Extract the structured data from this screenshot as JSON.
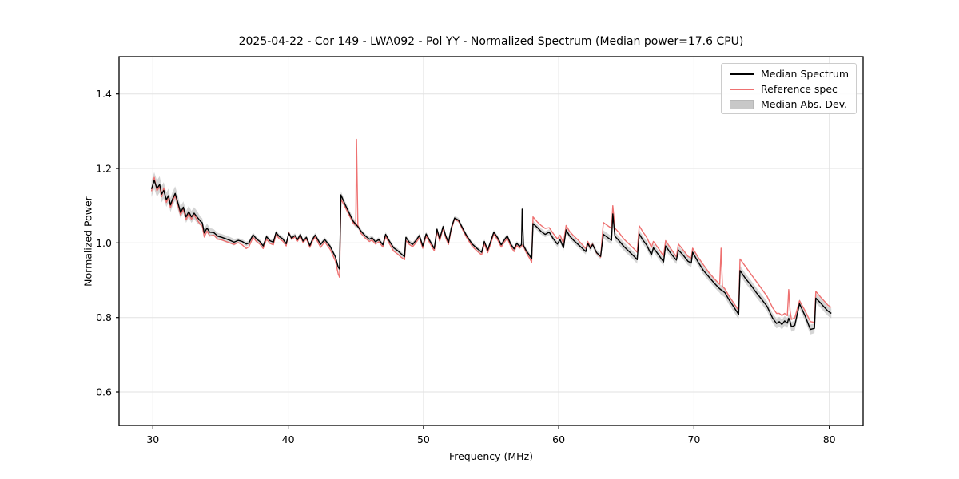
{
  "chart_data": {
    "type": "line",
    "title": "2025-04-22 - Cor 149 - LWA092 - Pol YY - Normalized Spectrum (Median power=17.6 CPU)",
    "xlabel": "Frequency (MHz)",
    "ylabel": "Normalized Power",
    "xlim": [
      27.5,
      82.5
    ],
    "ylim": [
      0.51,
      1.5
    ],
    "xticks": [
      30,
      40,
      50,
      60,
      70,
      80
    ],
    "yticks": [
      0.6,
      0.8,
      1.0,
      1.2,
      1.4
    ],
    "grid": true,
    "legend_position": "upper right",
    "colors": {
      "median": "#000000",
      "reference": "#ee7171",
      "band": "#ababab",
      "grid": "#e2e2e2",
      "spine": "#000000",
      "background": "#ffffff"
    },
    "legend": [
      {
        "label": "Median Spectrum",
        "color": "#000000",
        "type": "line"
      },
      {
        "label": "Reference spec",
        "color": "#ee7171",
        "type": "line"
      },
      {
        "label": "Median Abs. Dev.",
        "color": "#c8c8c8",
        "type": "patch"
      }
    ],
    "x": [
      29.9,
      30.1,
      30.3,
      30.5,
      30.65,
      30.8,
      31.0,
      31.15,
      31.3,
      31.45,
      31.65,
      31.85,
      32.05,
      32.25,
      32.45,
      32.65,
      32.85,
      33.05,
      33.3,
      33.5,
      33.65,
      33.8,
      34.0,
      34.2,
      34.5,
      34.8,
      35.1,
      35.4,
      35.7,
      36.0,
      36.3,
      36.6,
      36.9,
      37.1,
      37.4,
      37.65,
      37.9,
      38.15,
      38.4,
      38.65,
      38.9,
      39.1,
      39.35,
      39.6,
      39.85,
      40.05,
      40.25,
      40.5,
      40.7,
      40.9,
      41.1,
      41.35,
      41.6,
      41.8,
      42.0,
      42.4,
      42.7,
      43.1,
      43.5,
      43.7,
      43.8,
      43.9,
      44.2,
      44.5,
      44.8,
      45.0,
      45.05,
      45.15,
      45.4,
      45.7,
      46.0,
      46.2,
      46.45,
      46.7,
      47.0,
      47.2,
      47.5,
      47.8,
      48.1,
      48.35,
      48.6,
      48.7,
      48.95,
      49.2,
      49.45,
      49.7,
      49.95,
      50.2,
      50.5,
      50.8,
      51.0,
      51.2,
      51.45,
      51.65,
      51.85,
      52.05,
      52.3,
      52.6,
      52.9,
      53.2,
      53.6,
      54.0,
      54.3,
      54.5,
      54.75,
      55.0,
      55.2,
      55.5,
      55.75,
      56.0,
      56.2,
      56.45,
      56.7,
      56.9,
      57.1,
      57.25,
      57.3,
      57.4,
      57.6,
      57.8,
      58.0,
      58.1,
      58.4,
      58.7,
      59.0,
      59.3,
      59.6,
      59.9,
      60.1,
      60.35,
      60.55,
      60.8,
      61.1,
      61.4,
      61.7,
      62.0,
      62.15,
      62.35,
      62.5,
      62.8,
      63.1,
      63.3,
      63.6,
      63.9,
      64.0,
      64.15,
      64.45,
      64.8,
      65.2,
      65.6,
      65.8,
      65.95,
      66.2,
      66.5,
      66.85,
      67.0,
      67.4,
      67.75,
      67.9,
      68.3,
      68.7,
      68.85,
      69.2,
      69.55,
      69.8,
      69.9,
      70.3,
      70.7,
      71.1,
      71.5,
      71.9,
      72.0,
      72.1,
      72.3,
      72.6,
      73.0,
      73.3,
      73.4,
      73.8,
      74.2,
      74.6,
      75.0,
      75.4,
      75.8,
      76.1,
      76.3,
      76.5,
      76.7,
      76.9,
      77.0,
      77.1,
      77.2,
      77.45,
      77.8,
      78.2,
      78.6,
      78.9,
      79.0,
      79.35,
      79.65,
      79.9,
      80.15
    ],
    "series": [
      {
        "name": "Median Spectrum",
        "color": "#000000",
        "values": [
          1.145,
          1.168,
          1.146,
          1.157,
          1.131,
          1.141,
          1.116,
          1.127,
          1.102,
          1.118,
          1.133,
          1.108,
          1.082,
          1.096,
          1.07,
          1.084,
          1.07,
          1.08,
          1.068,
          1.059,
          1.054,
          1.027,
          1.04,
          1.029,
          1.028,
          1.018,
          1.015,
          1.011,
          1.007,
          1.002,
          1.007,
          1.004,
          0.997,
          1.0,
          1.022,
          1.011,
          1.004,
          0.992,
          1.017,
          1.006,
          1.002,
          1.028,
          1.017,
          1.011,
          0.998,
          1.026,
          1.013,
          1.02,
          1.009,
          1.023,
          1.005,
          1.015,
          0.993,
          1.01,
          1.021,
          0.996,
          1.009,
          0.991,
          0.962,
          0.935,
          0.93,
          1.129,
          1.104,
          1.081,
          1.059,
          1.05,
          1.048,
          1.044,
          1.031,
          1.019,
          1.01,
          1.014,
          1.003,
          1.009,
          0.995,
          1.023,
          1.004,
          0.987,
          0.979,
          0.971,
          0.963,
          1.015,
          1.002,
          0.996,
          1.007,
          1.02,
          0.992,
          1.024,
          1.004,
          0.985,
          1.037,
          1.011,
          1.044,
          1.019,
          1.001,
          1.04,
          1.067,
          1.061,
          1.039,
          1.019,
          0.997,
          0.984,
          0.975,
          1.004,
          0.981,
          1.007,
          1.029,
          1.013,
          0.995,
          1.009,
          1.019,
          0.997,
          0.984,
          0.999,
          0.991,
          0.995,
          1.091,
          0.993,
          0.979,
          0.969,
          0.957,
          1.052,
          1.042,
          1.031,
          1.023,
          1.029,
          1.011,
          0.997,
          1.009,
          0.987,
          1.035,
          1.019,
          1.007,
          0.997,
          0.987,
          0.977,
          0.999,
          0.985,
          0.996,
          0.974,
          0.964,
          1.023,
          1.015,
          1.007,
          1.078,
          1.018,
          1.006,
          0.991,
          0.977,
          0.963,
          0.955,
          1.024,
          1.009,
          0.994,
          0.968,
          0.987,
          0.967,
          0.949,
          0.992,
          0.971,
          0.954,
          0.981,
          0.967,
          0.951,
          0.946,
          0.975,
          0.949,
          0.926,
          0.909,
          0.892,
          0.877,
          0.874,
          0.872,
          0.866,
          0.847,
          0.825,
          0.808,
          0.926,
          0.905,
          0.887,
          0.867,
          0.849,
          0.83,
          0.799,
          0.784,
          0.789,
          0.781,
          0.791,
          0.785,
          0.798,
          0.789,
          0.775,
          0.779,
          0.837,
          0.805,
          0.768,
          0.771,
          0.852,
          0.839,
          0.827,
          0.817,
          0.811
        ]
      },
      {
        "name": "Reference spec",
        "color": "#ee7171",
        "values": [
          1.139,
          1.176,
          1.14,
          1.151,
          1.124,
          1.148,
          1.109,
          1.121,
          1.095,
          1.112,
          1.127,
          1.102,
          1.075,
          1.09,
          1.062,
          1.078,
          1.064,
          1.075,
          1.06,
          1.05,
          1.046,
          1.016,
          1.032,
          1.019,
          1.021,
          1.01,
          1.008,
          1.004,
          1.0,
          0.996,
          1.001,
          0.995,
          0.985,
          0.99,
          1.015,
          1.004,
          0.997,
          0.985,
          1.01,
          0.999,
          0.995,
          1.022,
          1.011,
          1.005,
          0.992,
          1.028,
          1.01,
          1.016,
          1.005,
          1.019,
          1.001,
          1.011,
          0.988,
          1.005,
          1.016,
          0.988,
          1.003,
          0.983,
          0.951,
          0.917,
          0.908,
          1.118,
          1.097,
          1.075,
          1.054,
          1.047,
          1.278,
          1.048,
          1.025,
          1.013,
          1.004,
          1.008,
          0.997,
          1.003,
          0.989,
          1.017,
          0.997,
          0.978,
          0.97,
          0.962,
          0.955,
          1.007,
          0.996,
          0.99,
          1.001,
          1.014,
          0.986,
          1.018,
          0.998,
          0.979,
          1.031,
          1.005,
          1.039,
          1.013,
          0.996,
          1.036,
          1.064,
          1.058,
          1.035,
          1.014,
          0.991,
          0.977,
          0.968,
          0.998,
          0.974,
          1.001,
          1.024,
          1.007,
          0.989,
          1.003,
          1.013,
          0.991,
          0.977,
          0.993,
          0.986,
          0.99,
          0.994,
          0.991,
          0.974,
          0.962,
          0.948,
          1.07,
          1.057,
          1.047,
          1.039,
          1.041,
          1.025,
          1.011,
          1.021,
          0.999,
          1.047,
          1.031,
          1.019,
          1.009,
          0.997,
          0.985,
          1.004,
          0.989,
          0.997,
          0.973,
          0.962,
          1.055,
          1.047,
          1.039,
          1.1,
          1.04,
          1.028,
          1.011,
          0.997,
          0.983,
          0.975,
          1.046,
          1.031,
          1.015,
          0.988,
          1.004,
          0.984,
          0.964,
          1.006,
          0.984,
          0.963,
          0.997,
          0.981,
          0.964,
          0.959,
          0.986,
          0.962,
          0.941,
          0.921,
          0.904,
          0.889,
          0.986,
          0.884,
          0.876,
          0.857,
          0.835,
          0.819,
          0.957,
          0.937,
          0.917,
          0.897,
          0.877,
          0.857,
          0.827,
          0.811,
          0.811,
          0.805,
          0.811,
          0.805,
          0.875,
          0.818,
          0.795,
          0.799,
          0.845,
          0.819,
          0.789,
          0.787,
          0.87,
          0.855,
          0.843,
          0.833,
          0.827
        ]
      }
    ],
    "mad_halfwidth": [
      0.022,
      0.022,
      0.022,
      0.022,
      0.022,
      0.022,
      0.019,
      0.019,
      0.019,
      0.019,
      0.019,
      0.019,
      0.016,
      0.016,
      0.016,
      0.016,
      0.016,
      0.016,
      0.016,
      0.012,
      0.012,
      0.012,
      0.012,
      0.012,
      0.009,
      0.009,
      0.009,
      0.009,
      0.009,
      0.009,
      0.006,
      0.006,
      0.006,
      0.006,
      0.006,
      0.006,
      0.006,
      0.006,
      0.006,
      0.006,
      0.006,
      0.006,
      0.006,
      0.006,
      0.006,
      0.006,
      0.006,
      0.006,
      0.006,
      0.006,
      0.006,
      0.006,
      0.006,
      0.006,
      0.006,
      0.006,
      0.006,
      0.006,
      0.006,
      0.006,
      0.006,
      0.009,
      0.009,
      0.009,
      0.009,
      0.009,
      0.006,
      0.006,
      0.006,
      0.006,
      0.006,
      0.006,
      0.006,
      0.006,
      0.006,
      0.006,
      0.006,
      0.006,
      0.006,
      0.006,
      0.006,
      0.006,
      0.006,
      0.006,
      0.006,
      0.006,
      0.006,
      0.006,
      0.006,
      0.006,
      0.006,
      0.006,
      0.006,
      0.006,
      0.006,
      0.006,
      0.006,
      0.006,
      0.006,
      0.006,
      0.006,
      0.006,
      0.006,
      0.006,
      0.006,
      0.006,
      0.006,
      0.006,
      0.006,
      0.006,
      0.006,
      0.006,
      0.006,
      0.006,
      0.006,
      0.006,
      0.012,
      0.007,
      0.007,
      0.007,
      0.007,
      0.008,
      0.008,
      0.008,
      0.008,
      0.008,
      0.008,
      0.008,
      0.008,
      0.008,
      0.008,
      0.008,
      0.008,
      0.008,
      0.008,
      0.008,
      0.008,
      0.008,
      0.008,
      0.008,
      0.008,
      0.011,
      0.011,
      0.011,
      0.011,
      0.011,
      0.011,
      0.011,
      0.011,
      0.011,
      0.011,
      0.011,
      0.011,
      0.011,
      0.011,
      0.011,
      0.011,
      0.011,
      0.011,
      0.011,
      0.011,
      0.011,
      0.011,
      0.011,
      0.011,
      0.011,
      0.011,
      0.011,
      0.011,
      0.011,
      0.011,
      0.013,
      0.013,
      0.013,
      0.013,
      0.013,
      0.013,
      0.013,
      0.013,
      0.013,
      0.013,
      0.013,
      0.013,
      0.013,
      0.013,
      0.013,
      0.013,
      0.013,
      0.013,
      0.013,
      0.013,
      0.013,
      0.013,
      0.013,
      0.013,
      0.013,
      0.013,
      0.013,
      0.013,
      0.013,
      0.013,
      0.013
    ]
  }
}
